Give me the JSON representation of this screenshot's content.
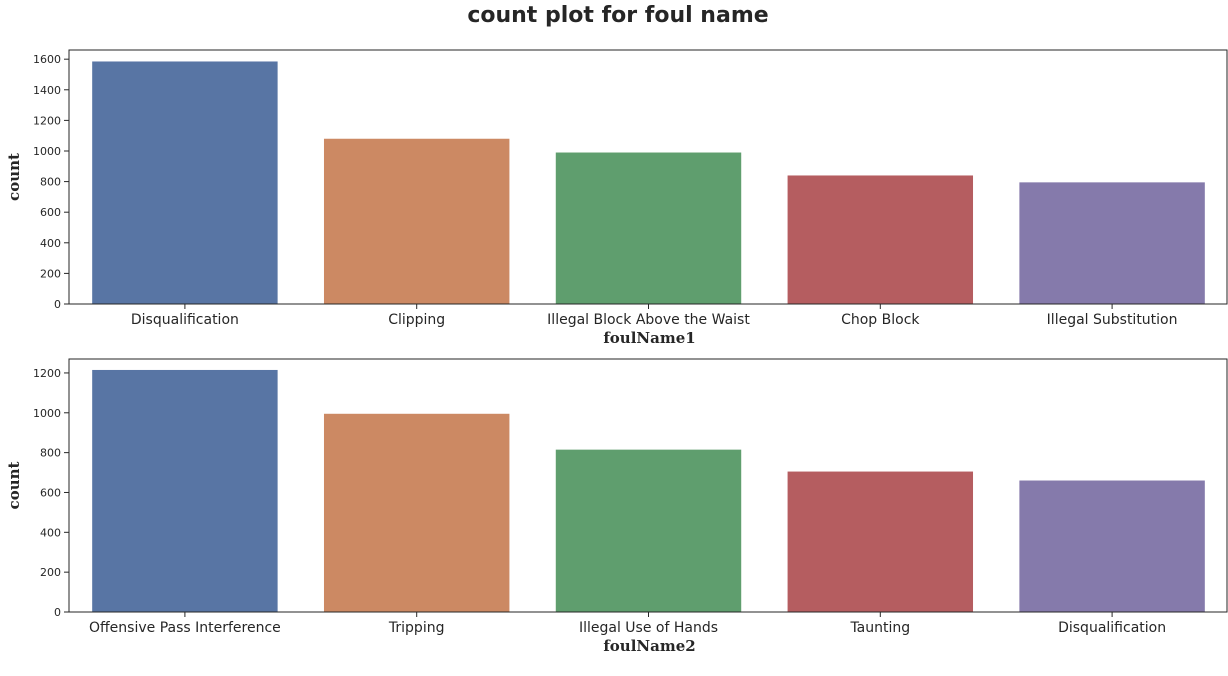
{
  "figure": {
    "title": "count plot for foul name"
  },
  "chart_data": [
    {
      "type": "bar",
      "categories": [
        "Disqualification",
        "Clipping",
        "Illegal Block Above the Waist",
        "Chop Block",
        "Illegal Substitution"
      ],
      "values": [
        1585,
        1080,
        990,
        840,
        795
      ],
      "xlabel": "foulName1",
      "ylabel": "count",
      "ylim": [
        0,
        1660
      ],
      "yticks": [
        0,
        200,
        400,
        600,
        800,
        1000,
        1200,
        1400,
        1600
      ],
      "colors": [
        "#5875a4",
        "#cc8963",
        "#5f9e6e",
        "#b55d60",
        "#857aab"
      ],
      "grid": false,
      "legend": "none"
    },
    {
      "type": "bar",
      "categories": [
        "Offensive Pass Interference",
        "Tripping",
        "Illegal Use of Hands",
        "Taunting",
        "Disqualification"
      ],
      "values": [
        1215,
        995,
        815,
        705,
        660
      ],
      "xlabel": "foulName2",
      "ylabel": "count",
      "ylim": [
        0,
        1270
      ],
      "yticks": [
        0,
        200,
        400,
        600,
        800,
        1000,
        1200
      ],
      "colors": [
        "#5875a4",
        "#cc8963",
        "#5f9e6e",
        "#b55d60",
        "#857aab"
      ],
      "grid": false,
      "legend": "none"
    }
  ]
}
